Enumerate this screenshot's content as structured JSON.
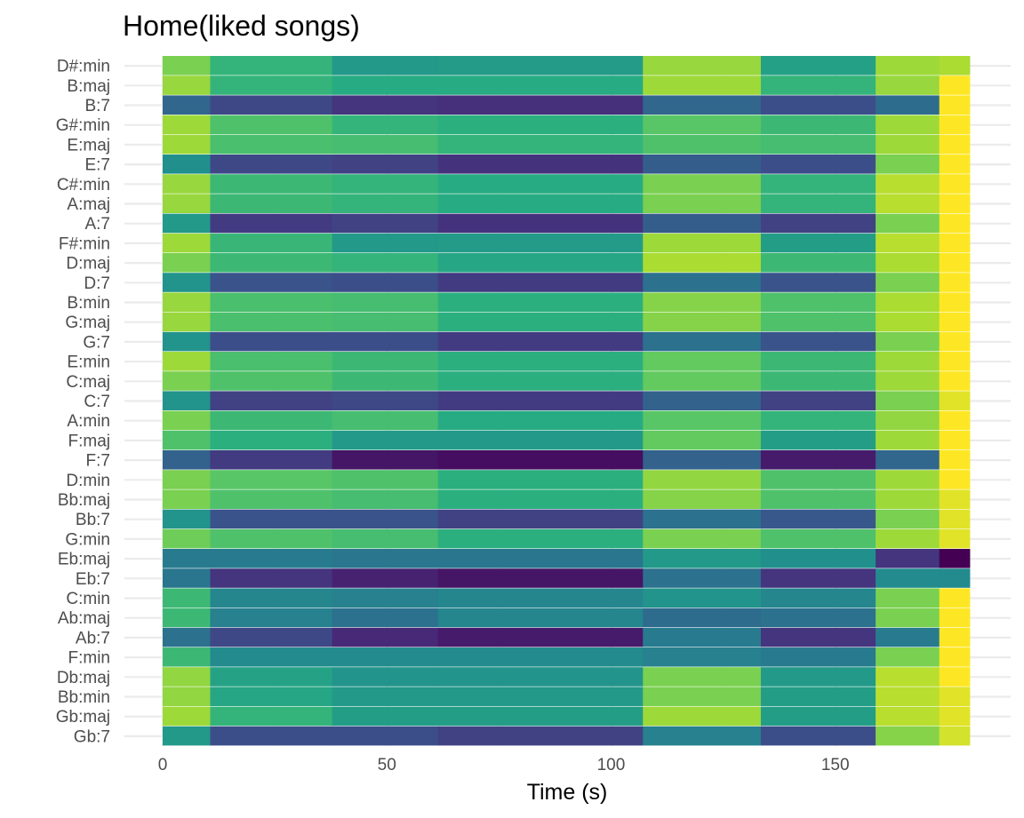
{
  "chart_data": {
    "type": "heatmap",
    "title": "Home(liked songs)",
    "xlabel": "Time (s)",
    "ylabel": "",
    "xlim": [
      0,
      180
    ],
    "x_ticks": [
      0,
      50,
      100,
      150
    ],
    "x_tick_labels": [
      "0",
      "50",
      "100",
      "150"
    ],
    "grid": true,
    "legend": "none",
    "colormap": "viridis",
    "time_bins": [
      [
        0,
        10.6
      ],
      [
        10.6,
        37.8
      ],
      [
        37.8,
        61.4
      ],
      [
        61.4,
        107.1
      ],
      [
        107.1,
        133.4
      ],
      [
        133.4,
        159.0
      ],
      [
        159.0,
        173.2
      ],
      [
        173.2,
        180
      ]
    ],
    "chords": [
      "D#:min",
      "B:maj",
      "B:7",
      "G#:min",
      "E:maj",
      "E:7",
      "C#:min",
      "A:maj",
      "A:7",
      "F#:min",
      "D:maj",
      "D:7",
      "B:min",
      "G:maj",
      "G:7",
      "E:min",
      "C:maj",
      "C:7",
      "A:min",
      "F:maj",
      "F:7",
      "D:min",
      "Bb:maj",
      "Bb:7",
      "G:min",
      "Eb:maj",
      "Eb:7",
      "C:min",
      "Ab:maj",
      "Ab:7",
      "F:min",
      "Db:maj",
      "Bb:min",
      "Gb:maj",
      "Gb:7"
    ],
    "values": [
      [
        0.8,
        0.66,
        0.54,
        0.55,
        0.85,
        0.57,
        0.86,
        0.88
      ],
      [
        0.85,
        0.66,
        0.62,
        0.62,
        0.86,
        0.66,
        0.85,
        1.0
      ],
      [
        0.34,
        0.22,
        0.16,
        0.14,
        0.34,
        0.24,
        0.36,
        1.0
      ],
      [
        0.86,
        0.72,
        0.66,
        0.64,
        0.74,
        0.68,
        0.86,
        1.0
      ],
      [
        0.86,
        0.71,
        0.7,
        0.66,
        0.72,
        0.7,
        0.86,
        1.0
      ],
      [
        0.5,
        0.22,
        0.2,
        0.15,
        0.3,
        0.24,
        0.8,
        1.0
      ],
      [
        0.85,
        0.68,
        0.66,
        0.62,
        0.8,
        0.66,
        0.9,
        1.0
      ],
      [
        0.85,
        0.68,
        0.66,
        0.62,
        0.8,
        0.66,
        0.9,
        1.0
      ],
      [
        0.54,
        0.18,
        0.2,
        0.15,
        0.3,
        0.2,
        0.8,
        1.0
      ],
      [
        0.86,
        0.67,
        0.54,
        0.55,
        0.86,
        0.56,
        0.9,
        1.0
      ],
      [
        0.8,
        0.68,
        0.66,
        0.6,
        0.88,
        0.68,
        0.88,
        1.0
      ],
      [
        0.52,
        0.26,
        0.24,
        0.18,
        0.38,
        0.26,
        0.8,
        1.0
      ],
      [
        0.85,
        0.71,
        0.7,
        0.64,
        0.82,
        0.72,
        0.88,
        1.0
      ],
      [
        0.85,
        0.71,
        0.7,
        0.64,
        0.82,
        0.72,
        0.88,
        1.0
      ],
      [
        0.52,
        0.24,
        0.24,
        0.18,
        0.38,
        0.26,
        0.8,
        1.0
      ],
      [
        0.86,
        0.71,
        0.68,
        0.64,
        0.76,
        0.68,
        0.86,
        1.0
      ],
      [
        0.8,
        0.72,
        0.68,
        0.64,
        0.76,
        0.68,
        0.86,
        1.0
      ],
      [
        0.52,
        0.2,
        0.22,
        0.18,
        0.32,
        0.2,
        0.8,
        0.96
      ],
      [
        0.8,
        0.68,
        0.7,
        0.62,
        0.74,
        0.66,
        0.84,
        1.0
      ],
      [
        0.72,
        0.64,
        0.54,
        0.54,
        0.76,
        0.56,
        0.86,
        1.0
      ],
      [
        0.32,
        0.18,
        0.06,
        0.04,
        0.32,
        0.08,
        0.34,
        1.0
      ],
      [
        0.8,
        0.74,
        0.72,
        0.64,
        0.84,
        0.72,
        0.86,
        1.0
      ],
      [
        0.8,
        0.72,
        0.7,
        0.64,
        0.82,
        0.72,
        0.86,
        0.96
      ],
      [
        0.52,
        0.26,
        0.26,
        0.2,
        0.38,
        0.28,
        0.8,
        0.96
      ],
      [
        0.78,
        0.72,
        0.7,
        0.64,
        0.8,
        0.72,
        0.86,
        0.96
      ],
      [
        0.42,
        0.42,
        0.4,
        0.4,
        0.54,
        0.5,
        0.16,
        0.0
      ],
      [
        0.4,
        0.16,
        0.1,
        0.06,
        0.38,
        0.16,
        0.48,
        0.48
      ],
      [
        0.68,
        0.46,
        0.44,
        0.46,
        0.52,
        0.46,
        0.8,
        1.0
      ],
      [
        0.68,
        0.44,
        0.38,
        0.46,
        0.36,
        0.38,
        0.8,
        1.0
      ],
      [
        0.38,
        0.22,
        0.12,
        0.08,
        0.42,
        0.16,
        0.42,
        1.0
      ],
      [
        0.68,
        0.48,
        0.48,
        0.48,
        0.44,
        0.42,
        0.8,
        1.0
      ],
      [
        0.84,
        0.58,
        0.52,
        0.52,
        0.8,
        0.54,
        0.9,
        1.0
      ],
      [
        0.84,
        0.6,
        0.54,
        0.54,
        0.8,
        0.56,
        0.9,
        0.96
      ],
      [
        0.86,
        0.66,
        0.56,
        0.56,
        0.86,
        0.56,
        0.9,
        0.96
      ],
      [
        0.54,
        0.24,
        0.24,
        0.2,
        0.44,
        0.24,
        0.82,
        0.94
      ]
    ]
  }
}
